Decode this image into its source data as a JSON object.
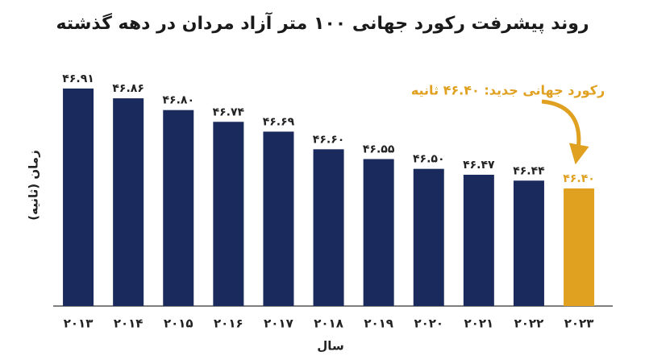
{
  "chart_data": {
    "type": "bar",
    "title": "روند پیشرفت رکورد جهانی ۱۰۰ متر آزاد مردان در دهه گذشته",
    "x_label": "سال",
    "y_label": "زمان (ثانیه)",
    "annotation": "رکورد جهانی جدید: ۴۶.۴۰ ثانیه",
    "categories": [
      "۲۰۱۳",
      "۲۰۱۴",
      "۲۰۱۵",
      "۲۰۱۶",
      "۲۰۱۷",
      "۲۰۱۸",
      "۲۰۱۹",
      "۲۰۲۰",
      "۲۰۲۱",
      "۲۰۲۲",
      "۲۰۲۳"
    ],
    "values": [
      46.91,
      46.86,
      46.8,
      46.74,
      46.69,
      46.6,
      46.55,
      46.5,
      46.47,
      46.44,
      46.4
    ],
    "value_labels": [
      "۴۶.۹۱",
      "۴۶.۸۶",
      "۴۶.۸۰",
      "۴۶.۷۴",
      "۴۶.۶۹",
      "۴۶.۶۰",
      "۴۶.۵۵",
      "۴۶.۵۰",
      "۴۶.۴۷",
      "۴۶.۴۴",
      "۴۶.۴۰"
    ],
    "colors": [
      "#1b2a5c",
      "#1b2a5c",
      "#1b2a5c",
      "#1b2a5c",
      "#1b2a5c",
      "#1b2a5c",
      "#1b2a5c",
      "#1b2a5c",
      "#1b2a5c",
      "#1b2a5c",
      "#e0a020"
    ],
    "ylim": [
      45.8,
      47.0
    ],
    "grid": false
  }
}
